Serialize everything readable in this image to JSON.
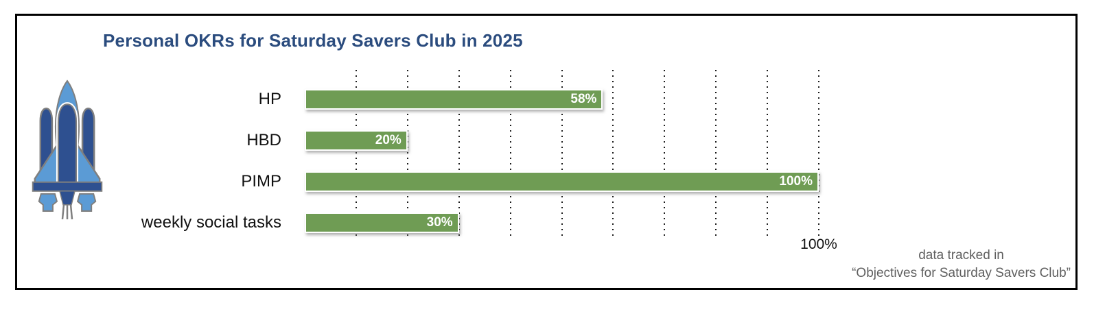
{
  "title": {
    "text": "Personal OKRs for Saturday Savers Club in 2025",
    "color": "#2b4c7e"
  },
  "chart_data": {
    "type": "bar",
    "orientation": "horizontal",
    "title": "Personal OKRs for Saturday Savers Club in 2025",
    "categories": [
      "HP",
      "HBD",
      "PIMP",
      "weekly social tasks"
    ],
    "values": [
      58,
      20,
      100,
      30
    ],
    "value_labels": [
      "58%",
      "20%",
      "100%",
      "30%"
    ],
    "xlabel": "",
    "ylabel": "",
    "xlim": [
      0,
      100
    ],
    "grid": "vertical-dotted",
    "grid_percents": [
      10,
      20,
      30,
      40,
      50,
      60,
      70,
      80,
      90,
      100
    ],
    "x_axis_visible_tick_label": "100%",
    "bar_color": "#6f9c54",
    "bar_border_color": "#ffffff",
    "legend_position": "none"
  },
  "axis": {
    "max_label": "100%"
  },
  "footnote": {
    "line1": "data tracked in",
    "line2": "“Objectives for Saturday Savers Club”"
  },
  "icon": {
    "name": "space-shuttle-icon",
    "light_blue": "#5b9bd5",
    "dark_blue": "#2e5090",
    "outline": "#7f7f7f"
  }
}
